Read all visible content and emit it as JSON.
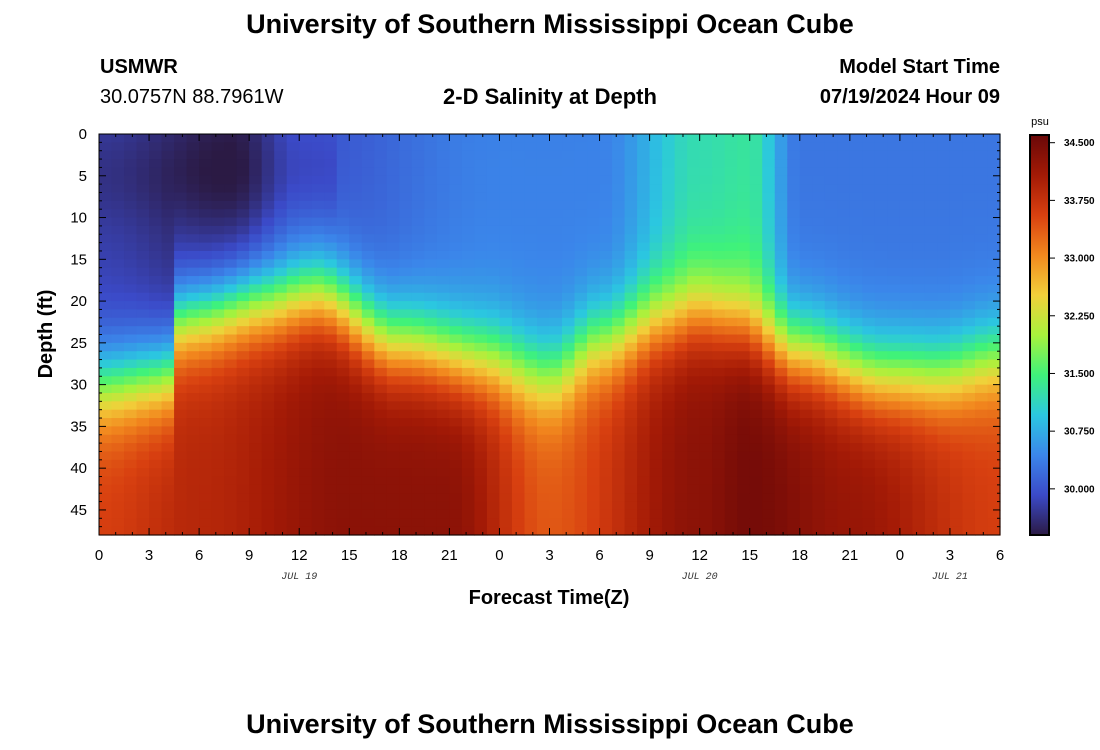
{
  "header": {
    "title": "University of Southern Mississippi Ocean Cube",
    "station": "USMWR",
    "coordinates": "30.0757N  88.7961W",
    "subtitle": "2-D Salinity at Depth",
    "start_label": "Model Start Time",
    "start_time": "07/19/2024 Hour 09"
  },
  "footer": {
    "title": "University of Southern Mississippi Ocean Cube"
  },
  "chart_data": {
    "type": "heatmap",
    "title": "2-D Salinity at Depth",
    "xlabel": "Forecast Time(Z)",
    "ylabel": "Depth (ft)",
    "x_tick_labels": [
      "0",
      "3",
      "6",
      "9",
      "12",
      "15",
      "18",
      "21",
      "0",
      "3",
      "6",
      "9",
      "12",
      "15",
      "18",
      "21",
      "0",
      "3",
      "6"
    ],
    "x_hours": [
      0,
      3,
      6,
      9,
      12,
      15,
      18,
      21,
      24,
      27,
      30,
      33,
      36,
      39,
      42,
      45,
      48,
      51,
      54
    ],
    "date_labels": [
      {
        "text": "JUL 19",
        "hour": 12
      },
      {
        "text": "JUL 20",
        "hour": 36
      },
      {
        "text": "JUL 21",
        "hour": 51
      }
    ],
    "xlim": [
      0,
      54
    ],
    "y_ticks": [
      0,
      5,
      10,
      15,
      20,
      25,
      30,
      35,
      40,
      45
    ],
    "ylim": [
      0,
      48
    ],
    "y_inverted": true,
    "colorbar": {
      "unit": "psu",
      "min": 29.4,
      "max": 34.6,
      "tick_labels": [
        "34.500",
        "33.750",
        "33.000",
        "32.250",
        "31.500",
        "30.750",
        "30.000"
      ],
      "tick_values": [
        34.5,
        33.75,
        33.0,
        32.25,
        31.5,
        30.75,
        30.0
      ],
      "colormap": [
        "#2b1a44",
        "#3b4ac8",
        "#3b86ea",
        "#2bc7e0",
        "#3ff27a",
        "#a8f23c",
        "#f2d03a",
        "#f2881e",
        "#d84010",
        "#a31a06",
        "#6a0808"
      ]
    },
    "field_description": {
      "halocline_depth_ft_by_hour": [
        [
          0,
          30
        ],
        [
          4,
          29
        ],
        [
          5,
          22
        ],
        [
          10,
          20
        ],
        [
          13,
          19
        ],
        [
          18,
          25
        ],
        [
          23,
          27
        ],
        [
          27,
          29
        ],
        [
          30,
          25
        ],
        [
          34,
          22
        ],
        [
          36,
          21
        ],
        [
          38,
          22
        ],
        [
          42,
          26
        ],
        [
          47,
          29
        ],
        [
          50,
          29
        ],
        [
          54,
          27
        ]
      ],
      "surface_values_psu": [
        [
          0,
          29.8
        ],
        [
          8,
          29.5
        ],
        [
          12,
          30.0
        ],
        [
          24,
          30.4
        ],
        [
          30,
          30.4
        ],
        [
          36,
          31.2
        ],
        [
          39,
          31.3
        ],
        [
          42,
          30.3
        ],
        [
          54,
          30.3
        ]
      ],
      "deep_values_psu": [
        [
          0,
          33.6
        ],
        [
          6,
          33.9
        ],
        [
          15,
          34.3
        ],
        [
          21,
          34.3
        ],
        [
          27,
          33.4
        ],
        [
          36,
          34.3
        ],
        [
          39,
          34.5
        ],
        [
          45,
          34.2
        ],
        [
          54,
          33.6
        ]
      ]
    }
  }
}
